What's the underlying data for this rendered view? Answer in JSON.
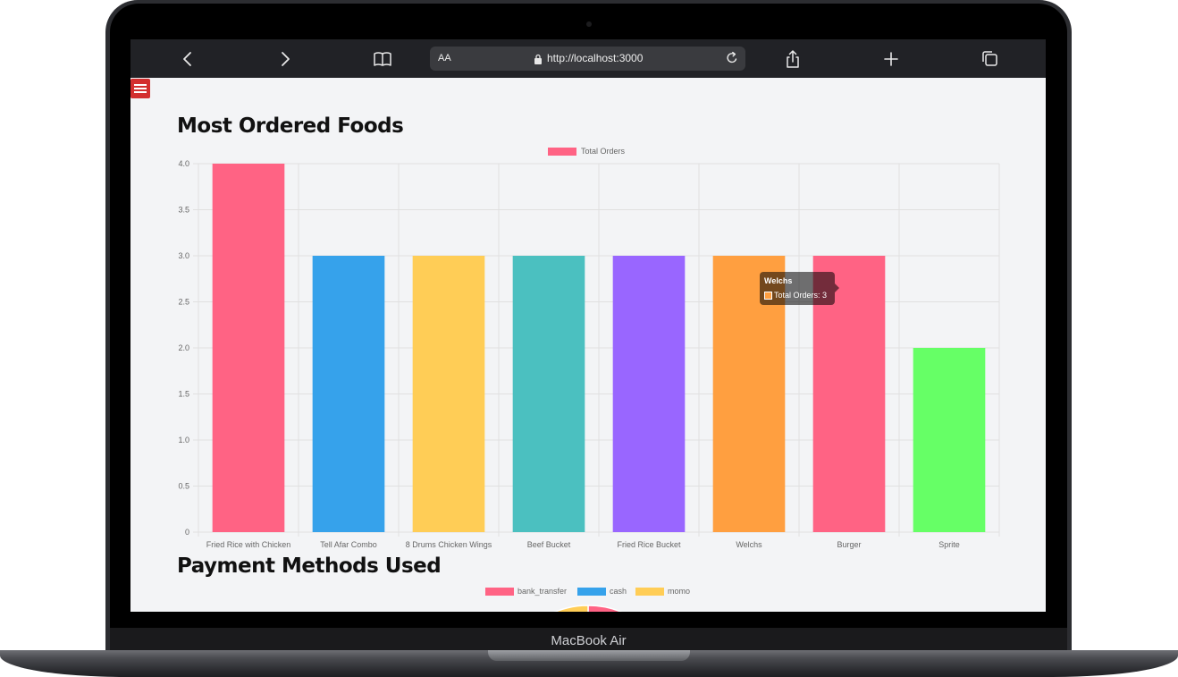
{
  "device": {
    "label": "MacBook Air"
  },
  "browser": {
    "text_size_label": "AA",
    "url": "http://localhost:3000",
    "icons": [
      "back-icon",
      "forward-icon",
      "book-icon",
      "share-icon",
      "add-tab-icon",
      "tabs-icon",
      "lock-icon",
      "reload-icon"
    ]
  },
  "page": {
    "menu_icon": "hamburger-icon",
    "menu_color": "#d32f2f",
    "sections": {
      "foods_title": "Most Ordered Foods",
      "payment_title": "Payment Methods Used"
    }
  },
  "chart_data": [
    {
      "type": "bar",
      "title": "Most Ordered Foods",
      "categories": [
        "Fried Rice with Chicken",
        "Tell Afar Combo",
        "8 Drums Chicken Wings",
        "Beef Bucket",
        "Fried Rice Bucket",
        "Welchs",
        "Burger",
        "Sprite"
      ],
      "series": [
        {
          "name": "Total Orders",
          "values": [
            4,
            3,
            3,
            3,
            3,
            3,
            3,
            2
          ]
        }
      ],
      "colors": [
        "#ff6384",
        "#36a2eb",
        "#ffcd56",
        "#4bc0c0",
        "#9966ff",
        "#ff9f40",
        "#ff6384",
        "#66ff66"
      ],
      "legend_color": "#ff6384",
      "ylim": [
        0,
        4
      ],
      "yticks": [
        "0",
        "0.5",
        "1.0",
        "1.5",
        "2.0",
        "2.5",
        "3.0",
        "3.5",
        "4.0"
      ],
      "grid": true,
      "legend": "top-center",
      "tooltip": {
        "title": "Welchs",
        "body": "Total Orders: 3",
        "color": "#ff9f40"
      }
    },
    {
      "type": "pie",
      "title": "Payment Methods Used",
      "legend": "top-center",
      "series": [
        {
          "name": "bank_transfer",
          "color": "#ff6384"
        },
        {
          "name": "cash",
          "color": "#36a2eb"
        },
        {
          "name": "momo",
          "color": "#ffcd56"
        }
      ]
    }
  ]
}
